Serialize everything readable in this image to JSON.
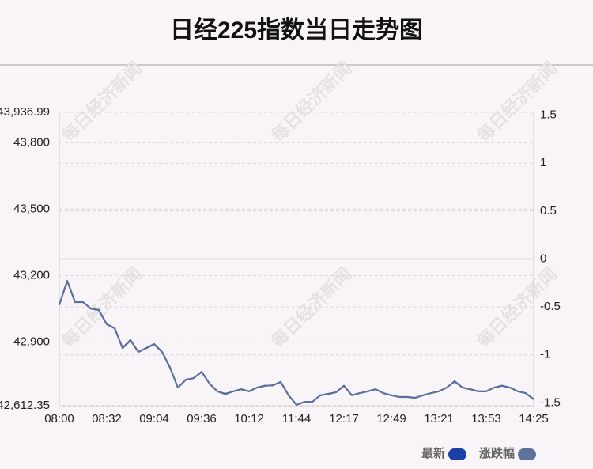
{
  "chart_data": {
    "type": "line",
    "title": "日经225指数当日走势图",
    "watermark": "每日经济新闻",
    "categories": [
      "08:00",
      null,
      null,
      null,
      null,
      null,
      "08:32",
      null,
      null,
      null,
      null,
      null,
      "09:04",
      null,
      null,
      null,
      null,
      null,
      "09:36",
      null,
      null,
      null,
      null,
      null,
      "10:12",
      null,
      null,
      null,
      null,
      null,
      "11:44",
      null,
      null,
      null,
      null,
      null,
      "12:17",
      null,
      null,
      null,
      null,
      null,
      "12:49",
      null,
      null,
      null,
      null,
      null,
      "13:21",
      null,
      null,
      null,
      null,
      null,
      "13:53",
      null,
      null,
      null,
      null,
      null,
      "14:25"
    ],
    "series": [
      {
        "name": "最新",
        "color": "#1a3fa6",
        "values": [
          43069,
          43176,
          43080,
          43080,
          43051,
          43044,
          42980,
          42962,
          42873,
          42909,
          42855,
          42873,
          42891,
          42855,
          42784,
          42694,
          42730,
          42737,
          42766,
          42712,
          42677,
          42666,
          42677,
          42687,
          42677,
          42694,
          42702,
          42705,
          42719,
          42659,
          42616,
          42630,
          42630,
          42659,
          42666,
          42673,
          42702,
          42659,
          42669,
          42677,
          42687,
          42669,
          42659,
          42652,
          42652,
          42648,
          42659,
          42669,
          42677,
          42694,
          42723,
          42694,
          42687,
          42677,
          42677,
          42694,
          42702,
          42694,
          42677,
          42669,
          42641
        ]
      },
      {
        "name": "涨跌幅",
        "color": "#5f729c",
        "axis": "y2",
        "values": [
          -0.48,
          -0.23,
          -0.45,
          -0.45,
          -0.52,
          -0.53,
          -0.68,
          -0.72,
          -0.93,
          -0.85,
          -0.97,
          -0.93,
          -0.89,
          -0.97,
          -1.13,
          -1.34,
          -1.26,
          -1.24,
          -1.18,
          -1.3,
          -1.38,
          -1.41,
          -1.38,
          -1.36,
          -1.38,
          -1.34,
          -1.32,
          -1.32,
          -1.28,
          -1.42,
          -1.52,
          -1.49,
          -1.49,
          -1.42,
          -1.41,
          -1.39,
          -1.32,
          -1.42,
          -1.4,
          -1.38,
          -1.36,
          -1.4,
          -1.42,
          -1.44,
          -1.44,
          -1.45,
          -1.42,
          -1.4,
          -1.38,
          -1.34,
          -1.28,
          -1.34,
          -1.36,
          -1.38,
          -1.38,
          -1.34,
          -1.32,
          -1.34,
          -1.38,
          -1.4,
          -1.46
        ]
      }
    ],
    "ylim": [
      42612.35,
      43936.99
    ],
    "yticks": [
      {
        "value": 43936.99,
        "label": "43,936.99"
      },
      {
        "value": 43800,
        "label": "43,800"
      },
      {
        "value": 43500,
        "label": "43,500"
      },
      {
        "value": 43200,
        "label": "43,200"
      },
      {
        "value": 42900,
        "label": "42,900"
      },
      {
        "value": 42612.35,
        "label": "42,612.35"
      }
    ],
    "y2lim": [
      -1.53,
      1.53
    ],
    "y2ticks": [
      1.5,
      1,
      0.5,
      0,
      -0.5,
      -1,
      -1.5
    ],
    "grid": true
  }
}
